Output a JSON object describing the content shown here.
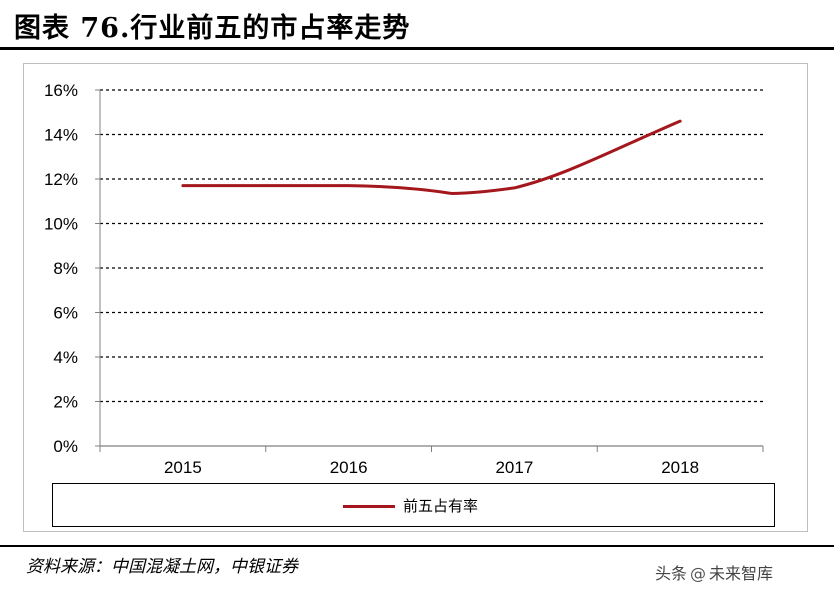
{
  "page_title": "图表 76.行业前五的市占率走势",
  "source": "资料来源：中国混凝土网，中银证券",
  "watermark": {
    "prefix": "头条",
    "icon": "at-icon",
    "name": "未来智库"
  },
  "colors": {
    "series": "#a3171d",
    "grid": "#000000",
    "axis": "#808080"
  },
  "chart_data": {
    "type": "line",
    "categories": [
      "2015",
      "2016",
      "2017",
      "2018"
    ],
    "series": [
      {
        "name": "前五占有率",
        "values": [
          11.7,
          11.7,
          11.6,
          14.6
        ]
      }
    ],
    "yticks": [
      "0%",
      "2%",
      "4%",
      "6%",
      "8%",
      "10%",
      "12%",
      "14%",
      "16%"
    ],
    "ylim": [
      0,
      16
    ],
    "grid": true,
    "grid_style": "dashed",
    "legend_position": "bottom",
    "title": "",
    "xlabel": "",
    "ylabel": ""
  }
}
